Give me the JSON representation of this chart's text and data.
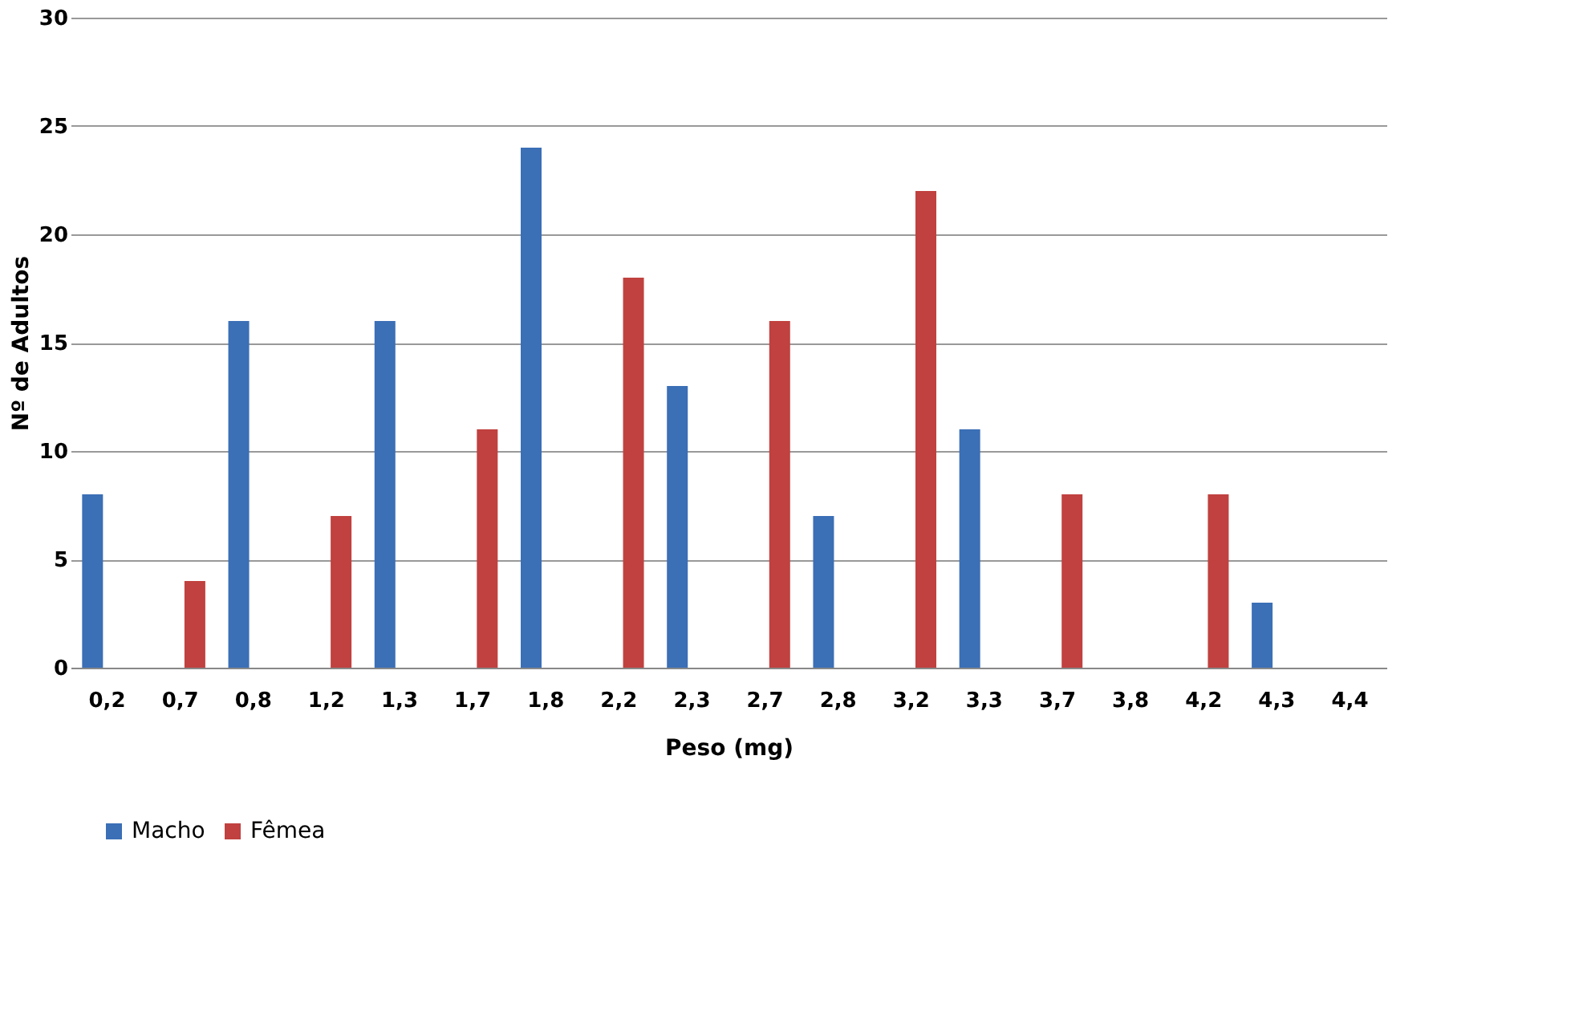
{
  "chart_data": {
    "type": "bar",
    "xlabel": "Peso (mg)",
    "ylabel": "Nº de Adultos",
    "categories": [
      "0,2",
      "0,7",
      "0,8",
      "1,2",
      "1,3",
      "1,7",
      "1,8",
      "2,2",
      "2,3",
      "2,7",
      "2,8",
      "3,2",
      "3,3",
      "3,7",
      "3,8",
      "4,2",
      "4,3",
      "4,4"
    ],
    "series": [
      {
        "name": "Macho",
        "color": "#3b6fb6",
        "values": [
          8,
          null,
          16,
          null,
          16,
          null,
          24,
          null,
          13,
          null,
          7,
          null,
          11,
          null,
          null,
          null,
          3,
          null
        ]
      },
      {
        "name": "Fêmea",
        "color": "#c0413f",
        "values": [
          null,
          4,
          null,
          7,
          null,
          11,
          null,
          18,
          null,
          16,
          null,
          22,
          null,
          8,
          null,
          8,
          null,
          null
        ]
      }
    ],
    "ylim": [
      0,
      30
    ],
    "yticks": [
      0,
      5,
      10,
      15,
      20,
      25,
      30
    ],
    "grid": "y",
    "legend": "bottom"
  }
}
